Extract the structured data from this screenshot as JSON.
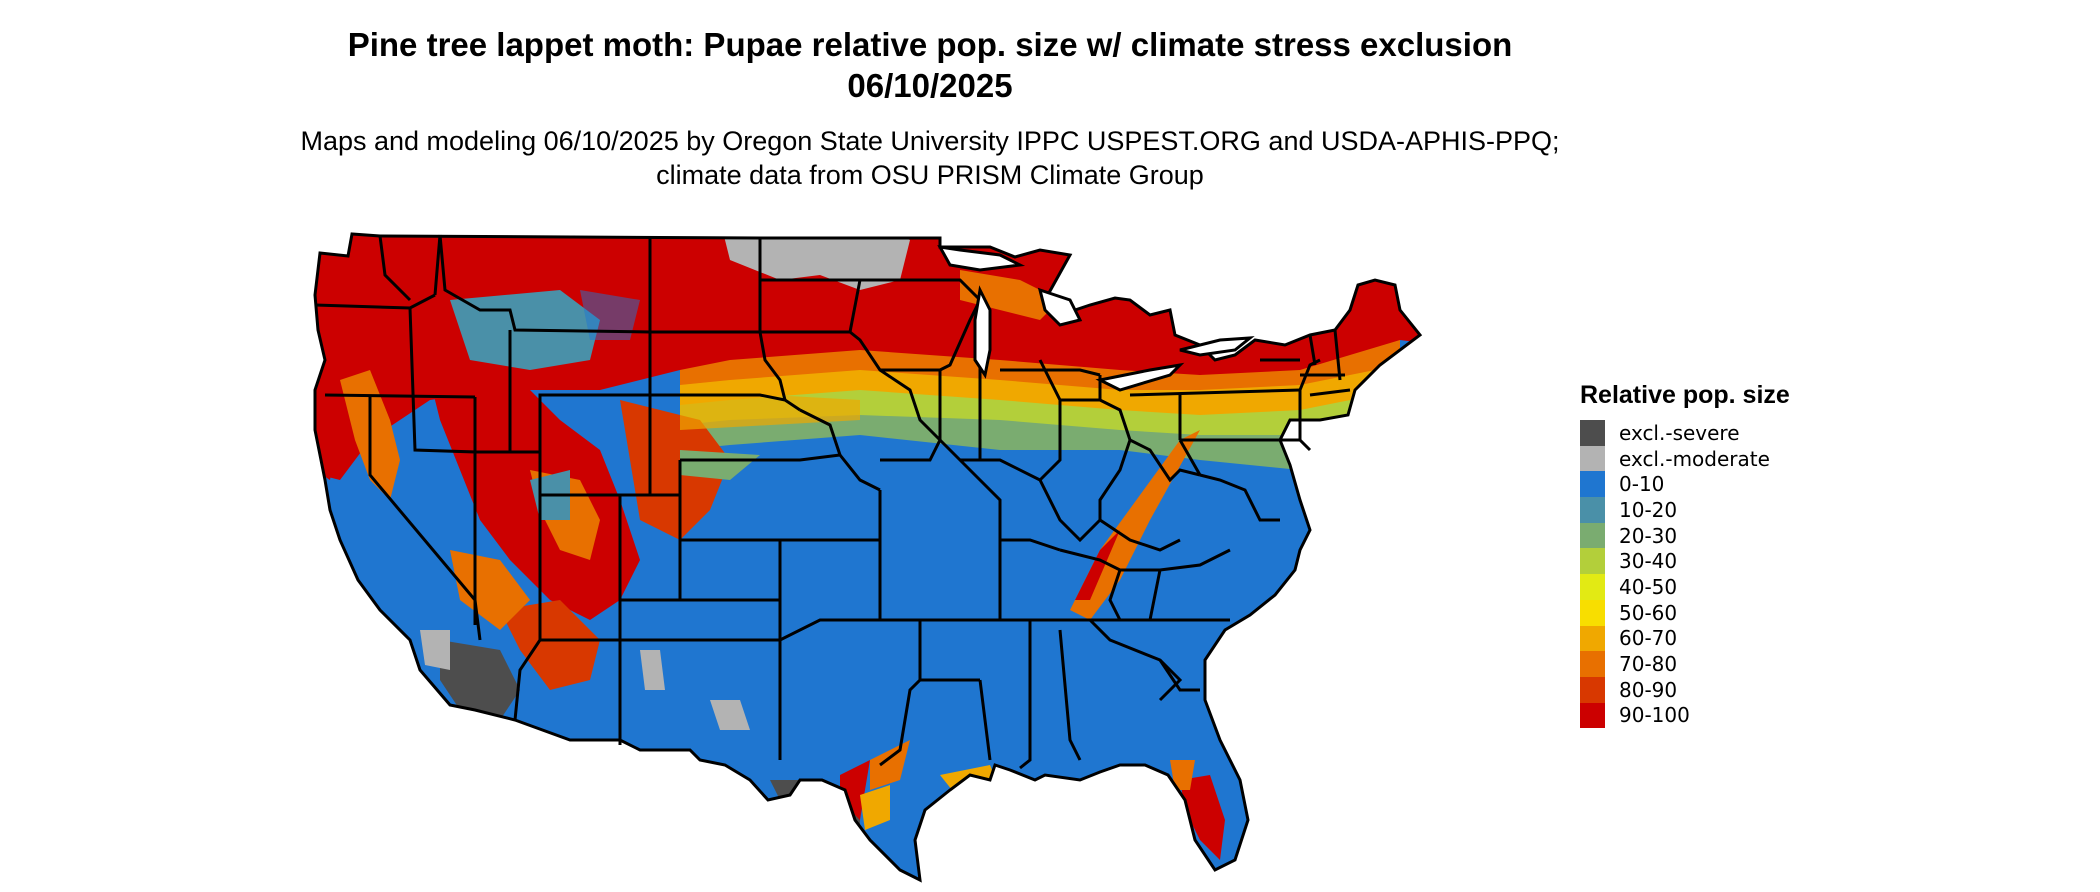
{
  "title": "Pine tree lappet moth: Pupae relative pop. size w/ climate stress exclusion 06/10/2025",
  "subtitle": "Maps and modeling 06/10/2025 by Oregon State University IPPC USPEST.ORG and USDA-APHIS-PPQ; climate data from OSU PRISM Climate Group",
  "legend": {
    "title": "Relative pop. size",
    "items": [
      {
        "label": "excl.-severe",
        "color": "#4d4d4d"
      },
      {
        "label": "excl.-moderate",
        "color": "#b3b3b3"
      },
      {
        "label": "0-10",
        "color": "#1f76d0"
      },
      {
        "label": "10-20",
        "color": "#4a90a8"
      },
      {
        "label": "20-30",
        "color": "#7aac70"
      },
      {
        "label": "30-40",
        "color": "#b3cf3a"
      },
      {
        "label": "40-50",
        "color": "#e2ea14"
      },
      {
        "label": "50-60",
        "color": "#f8de00"
      },
      {
        "label": "60-70",
        "color": "#f0a800"
      },
      {
        "label": "70-80",
        "color": "#e87000"
      },
      {
        "label": "80-90",
        "color": "#d83800"
      },
      {
        "label": "90-100",
        "color": "#cc0000"
      }
    ]
  }
}
